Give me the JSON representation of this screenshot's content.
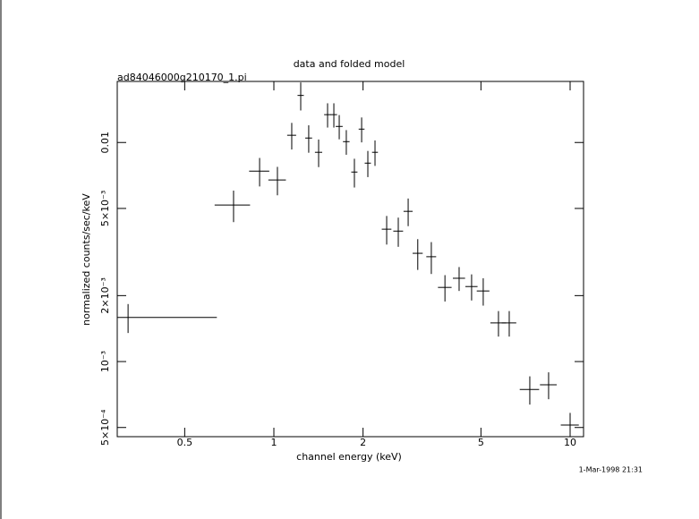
{
  "chart_data": {
    "type": "scatter",
    "title": "data and folded model",
    "subtitle": "ad84046000g210170_1.pi",
    "x_label": "channel energy (keV)",
    "y_label": "normalized counts/sec/keV",
    "timestamp": "1-Mar-1998 21:31",
    "x_scale": "log",
    "y_scale": "log",
    "color": "#000000",
    "xlim": [
      0.296,
      11.1
    ],
    "ylim": [
      0.000454,
      0.019
    ],
    "xticks": [
      0.5,
      1,
      2,
      5,
      10
    ],
    "yticks": [
      0.01,
      {
        "value": 0.005,
        "label": "5×10⁻³"
      },
      {
        "value": 0.002,
        "label": "2×10⁻³"
      },
      {
        "value": 0.001,
        "label": "10⁻³"
      },
      {
        "value": 0.0005,
        "label": "5×10⁻⁴"
      }
    ],
    "x": [
      0.322,
      0.731,
      0.895,
      1.028,
      1.149,
      1.232,
      1.311,
      1.416,
      1.518,
      1.594,
      1.662,
      1.756,
      1.87,
      1.978,
      2.076,
      2.195,
      2.403,
      2.63,
      2.84,
      3.06,
      3.4,
      3.78,
      4.22,
      4.65,
      5.09,
      5.73,
      6.23,
      7.31,
      8.46,
      10.0
    ],
    "xerr": [
      0.32,
      0.1,
      0.07,
      0.07,
      0.04,
      0.03,
      0.035,
      0.04,
      0.04,
      0.04,
      0.045,
      0.045,
      0.045,
      0.045,
      0.05,
      0.05,
      0.09,
      0.1,
      0.1,
      0.12,
      0.13,
      0.2,
      0.2,
      0.22,
      0.25,
      0.35,
      0.35,
      0.55,
      0.55,
      0.7
    ],
    "values": [
      0.00159,
      0.00518,
      0.0074,
      0.00674,
      0.01079,
      0.0164,
      0.01048,
      0.00902,
      0.0134,
      0.0134,
      0.01184,
      0.01009,
      0.00733,
      0.01151,
      0.00805,
      0.00902,
      0.00402,
      0.00394,
      0.00485,
      0.00312,
      0.00301,
      0.00218,
      0.0024,
      0.0022,
      0.0021,
      0.0015,
      0.0015,
      0.000746,
      0.000783,
      0.000513
    ],
    "yerr": [
      0.00024,
      0.00085,
      0.0011,
      0.001,
      0.0015,
      0.0024,
      0.0015,
      0.0013,
      0.0017,
      0.0017,
      0.0015,
      0.0013,
      0.0011,
      0.0015,
      0.0011,
      0.0012,
      0.0006,
      0.0006,
      0.0007,
      0.0005,
      0.0005,
      0.0003,
      0.0003,
      0.0003,
      0.0003,
      0.0002,
      0.0002,
      0.00011,
      0.00011,
      7e-05
    ]
  }
}
